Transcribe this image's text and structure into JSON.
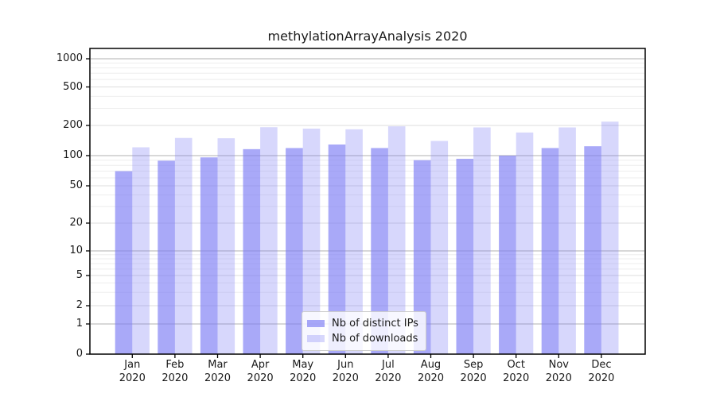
{
  "chart_data": {
    "type": "bar",
    "title": "methylationArrayAnalysis 2020",
    "categories": [
      "Jan",
      "Feb",
      "Mar",
      "Apr",
      "May",
      "Jun",
      "Jul",
      "Aug",
      "Sep",
      "Oct",
      "Nov",
      "Dec"
    ],
    "year": "2020",
    "series": [
      {
        "name": "Nb of distinct IPs",
        "color": "#7c7cf4",
        "opacity": 0.66,
        "values": [
          70,
          89,
          96,
          116,
          119,
          129,
          119,
          90,
          93,
          100,
          119,
          124
        ]
      },
      {
        "name": "Nb of downloads",
        "color": "#7c7cf4",
        "opacity": 0.3,
        "values": [
          121,
          150,
          149,
          192,
          186,
          183,
          196,
          140,
          191,
          170,
          191,
          219
        ]
      }
    ],
    "xlabel": "",
    "ylabel": "",
    "y_ticks": [
      0,
      1,
      2,
      5,
      10,
      20,
      50,
      100,
      200,
      500,
      1000
    ],
    "y_minor_gridlines": [
      3,
      4,
      6,
      7,
      8,
      9,
      30,
      40,
      60,
      70,
      80,
      90,
      300,
      400,
      600,
      700,
      800,
      900
    ],
    "ylim": [
      0,
      1240
    ],
    "scale": "symlog",
    "grid": true,
    "legend_position": "lower center"
  },
  "colors": {
    "bar_dark_rendered": "#a9a9f8",
    "bar_light_rendered": "#d9d9f9",
    "grid_major": "#b0b0b0",
    "grid_mid": "#dcdcdc",
    "grid_minor": "#eeeeee",
    "spine": "#000000",
    "legend_border": "#cccccc",
    "text": "#1a1a1a"
  }
}
